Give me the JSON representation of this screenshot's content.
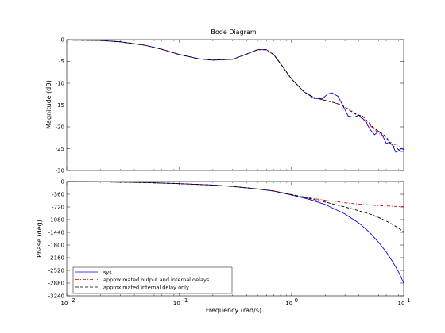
{
  "chart_data": {
    "type": "line",
    "title": "Bode Diagram",
    "xlabel": "Frequency  (rad/s)",
    "xscale": "log",
    "xlim": [
      0.01,
      10
    ],
    "x_tick_labels": [
      "10",
      "10",
      "10",
      "10"
    ],
    "x_tick_exponents": [
      "-2",
      "-1",
      "0",
      "1"
    ],
    "legend_position": "lower-left of phase panel",
    "panels": [
      {
        "name": "magnitude",
        "ylabel": "Magnitude (dB)",
        "ylim": [
          -30,
          0
        ],
        "yticks": [
          0,
          -5,
          -10,
          -15,
          -20,
          -25,
          -30
        ],
        "series": [
          {
            "name": "sys",
            "color": "#0000ff",
            "style": "solid",
            "x": [
              0.01,
              0.015,
              0.02,
              0.03,
              0.05,
              0.07,
              0.1,
              0.15,
              0.2,
              0.3,
              0.4,
              0.5,
              0.6,
              0.7,
              0.8,
              1.0,
              1.3,
              1.6,
              1.9,
              2.1,
              2.3,
              2.6,
              2.9,
              3.2,
              3.6,
              4.0,
              4.5,
              5.0,
              5.5,
              6.0,
              6.5,
              7.0,
              7.5,
              8.0,
              8.5,
              9.0,
              9.5,
              10.0
            ],
            "y": [
              -0.1,
              -0.15,
              -0.2,
              -0.5,
              -1.3,
              -2.2,
              -3.4,
              -4.4,
              -4.7,
              -4.5,
              -3.3,
              -2.3,
              -2.3,
              -3.5,
              -5.5,
              -9.0,
              -12.0,
              -13.5,
              -13.5,
              -12.5,
              -12.2,
              -13.0,
              -15.3,
              -17.5,
              -17.8,
              -17.3,
              -18.5,
              -20.5,
              -21.8,
              -21.0,
              -22.0,
              -23.8,
              -23.5,
              -24.3,
              -25.8,
              -25.5,
              -25.0,
              -25.2
            ]
          },
          {
            "name": "approximated output and internal delays",
            "color": "#cc0000",
            "style": "dash-dot",
            "x": [
              0.01,
              0.015,
              0.02,
              0.03,
              0.05,
              0.07,
              0.1,
              0.15,
              0.2,
              0.3,
              0.4,
              0.5,
              0.6,
              0.7,
              0.8,
              1.0,
              1.3,
              1.6,
              1.9,
              2.3,
              2.8,
              3.4,
              4.0,
              5.0,
              6.0,
              7.0,
              8.0,
              9.0,
              10.0
            ],
            "y": [
              -0.1,
              -0.15,
              -0.2,
              -0.5,
              -1.3,
              -2.2,
              -3.4,
              -4.4,
              -4.7,
              -4.5,
              -3.3,
              -2.3,
              -2.3,
              -3.5,
              -5.5,
              -9.0,
              -12.0,
              -13.3,
              -13.8,
              -14.3,
              -15.0,
              -16.2,
              -17.5,
              -19.6,
              -21.5,
              -22.8,
              -23.8,
              -24.5,
              -24.8
            ]
          },
          {
            "name": "approximated internal delay only",
            "color": "#000000",
            "style": "dashed",
            "x": [
              0.01,
              0.015,
              0.02,
              0.03,
              0.05,
              0.07,
              0.1,
              0.15,
              0.2,
              0.3,
              0.4,
              0.5,
              0.6,
              0.7,
              0.8,
              1.0,
              1.3,
              1.6,
              1.9,
              2.3,
              2.8,
              3.3,
              3.8,
              4.3,
              4.8,
              5.3,
              5.8,
              6.4,
              7.0,
              7.6,
              8.2,
              8.8,
              9.4,
              10.0
            ],
            "y": [
              -0.1,
              -0.15,
              -0.2,
              -0.5,
              -1.3,
              -2.2,
              -3.4,
              -4.4,
              -4.7,
              -4.5,
              -3.3,
              -2.3,
              -2.3,
              -3.5,
              -5.5,
              -9.0,
              -12.0,
              -13.3,
              -13.8,
              -14.3,
              -15.0,
              -16.2,
              -17.2,
              -17.5,
              -18.8,
              -20.0,
              -20.8,
              -21.5,
              -22.3,
              -23.8,
              -24.5,
              -25.0,
              -25.6,
              -25.6
            ]
          }
        ]
      },
      {
        "name": "phase",
        "ylabel": "Phase (deg)",
        "ylim": [
          -3240,
          0
        ],
        "yticks": [
          0,
          -360,
          -720,
          -1080,
          -1440,
          -1800,
          -2160,
          -2520,
          -2880,
          -3240
        ],
        "series": [
          {
            "name": "sys",
            "color": "#0000ff",
            "style": "solid",
            "x": [
              0.01,
              0.02,
              0.05,
              0.1,
              0.2,
              0.3,
              0.5,
              0.7,
              1.0,
              1.5,
              2.0,
              3.0,
              4.0,
              5.0,
              6.0,
              7.0,
              8.0,
              9.0,
              10.0
            ],
            "y": [
              0,
              -10,
              -30,
              -60,
              -100,
              -140,
              -210,
              -270,
              -380,
              -520,
              -650,
              -920,
              -1180,
              -1450,
              -1730,
              -2000,
              -2280,
              -2560,
              -2880
            ]
          },
          {
            "name": "approximated output and internal delays",
            "color": "#cc0000",
            "style": "dash-dot",
            "x": [
              0.01,
              0.02,
              0.05,
              0.1,
              0.2,
              0.3,
              0.5,
              0.7,
              1.0,
              1.5,
              2.0,
              3.0,
              4.0,
              5.0,
              6.0,
              7.0,
              8.0,
              9.0,
              10.0
            ],
            "y": [
              0,
              -10,
              -30,
              -60,
              -100,
              -140,
              -210,
              -270,
              -370,
              -470,
              -530,
              -600,
              -640,
              -665,
              -680,
              -690,
              -700,
              -710,
              -710
            ]
          },
          {
            "name": "approximated internal delay only",
            "color": "#000000",
            "style": "dashed",
            "x": [
              0.01,
              0.02,
              0.05,
              0.1,
              0.2,
              0.3,
              0.5,
              0.7,
              1.0,
              1.5,
              2.0,
              3.0,
              4.0,
              5.0,
              6.0,
              7.0,
              8.0,
              9.0,
              10.0
            ],
            "y": [
              0,
              -10,
              -30,
              -60,
              -100,
              -140,
              -210,
              -270,
              -370,
              -490,
              -580,
              -720,
              -830,
              -920,
              -1020,
              -1120,
              -1220,
              -1320,
              -1430
            ]
          }
        ]
      }
    ],
    "legend": [
      "sys",
      "approximated output and internal delays",
      "approximated internal delay only"
    ]
  }
}
